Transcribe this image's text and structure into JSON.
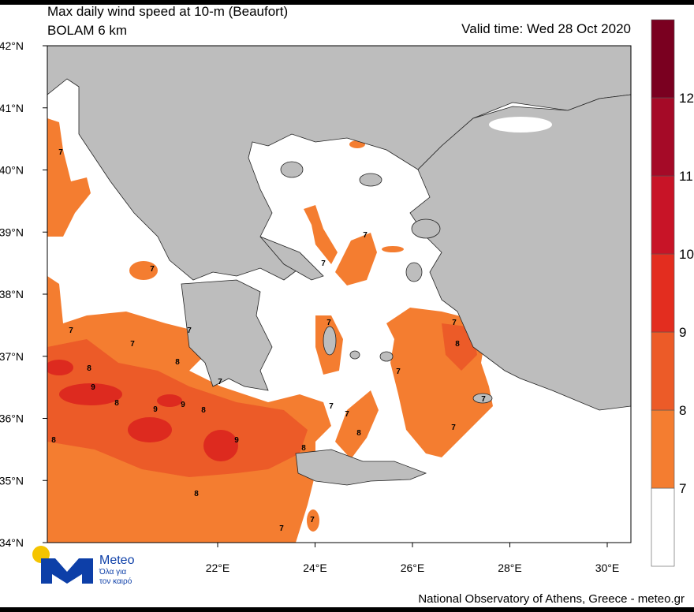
{
  "header": {
    "title": "Max daily wind speed at 10-m (Beaufort)",
    "model": "BOLAM 6 km",
    "valid_time": "Valid time: Wed 28 Oct 2020"
  },
  "map": {
    "lat_ticks": [
      {
        "value": 42,
        "label": "42°N"
      },
      {
        "value": 41,
        "label": "41°N"
      },
      {
        "value": 40,
        "label": "40°N"
      },
      {
        "value": 39,
        "label": "39°N"
      },
      {
        "value": 38,
        "label": "38°N"
      },
      {
        "value": 37,
        "label": "37°N"
      },
      {
        "value": 36,
        "label": "36°N"
      },
      {
        "value": 35,
        "label": "35°N"
      },
      {
        "value": 34,
        "label": "34°N"
      }
    ],
    "lon_ticks": [
      {
        "value": 22,
        "label": "22°E"
      },
      {
        "value": 24,
        "label": "24°E"
      },
      {
        "value": 26,
        "label": "26°E"
      },
      {
        "value": 28,
        "label": "28°E"
      },
      {
        "value": 30,
        "label": "30°E"
      }
    ],
    "contour_labels": [
      7,
      7,
      7,
      7,
      7,
      7,
      7,
      8,
      8,
      9,
      8,
      9,
      9,
      8,
      7,
      8,
      9,
      8,
      7,
      7,
      8,
      7,
      7,
      8,
      7,
      7,
      7,
      8,
      7,
      7
    ]
  },
  "colorbar": {
    "levels": [
      7,
      8,
      9,
      10,
      11,
      12
    ],
    "colors": [
      "#ffffff",
      "#f47d30",
      "#ec5b28",
      "#e32d1f",
      "#c81427",
      "#a50a27",
      "#7a0020"
    ]
  },
  "logo": {
    "name": "Meteo",
    "line1": "Όλα για",
    "line2": "τον καιρό"
  },
  "footer": "National Observatory of Athens, Greece - meteo.gr"
}
